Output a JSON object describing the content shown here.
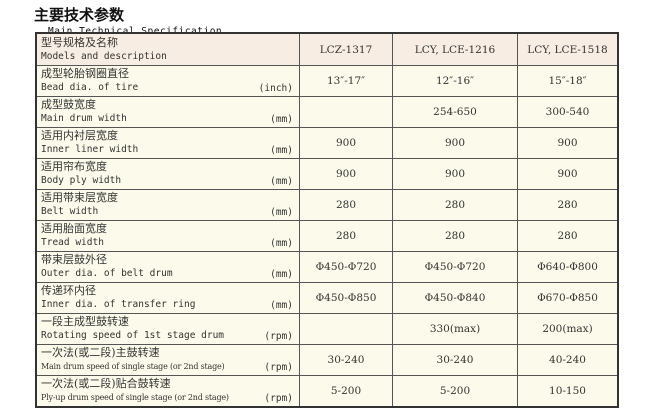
{
  "title": {
    "cn": "主要技术参数",
    "en": "Main Technical Specification"
  },
  "header": {
    "cn": "型号规格及名称",
    "en": "Models and description",
    "models": [
      "LCZ-1317",
      "LCY, LCE-1216",
      "LCY, LCE-1518"
    ]
  },
  "rows": [
    {
      "cn": "成型轮胎钢圈直径",
      "en": "Bead dia. of tire",
      "unit": "(inch)",
      "values": [
        "13″-17″",
        "12″-16″",
        "15″-18″"
      ]
    },
    {
      "cn": "成型鼓宽度",
      "en": "Main drum width",
      "unit": "(mm)",
      "values": [
        "",
        "254-650",
        "300-540"
      ]
    },
    {
      "cn": "适用内衬层宽度",
      "en": "Inner liner width",
      "unit": "(mm)",
      "values": [
        "900",
        "900",
        "900"
      ]
    },
    {
      "cn": "适用帘布宽度",
      "en": "Body ply width",
      "unit": "(mm)",
      "values": [
        "900",
        "900",
        "900"
      ]
    },
    {
      "cn": "适用带束层宽度",
      "en": "Belt width",
      "unit": "(mm)",
      "values": [
        "280",
        "280",
        "280"
      ]
    },
    {
      "cn": "适用胎面宽度",
      "en": "Tread width",
      "unit": "(mm)",
      "values": [
        "280",
        "280",
        "280"
      ]
    },
    {
      "cn": "带束层鼓外径",
      "en": "Outer dia. of belt drum",
      "unit": "(mm)",
      "values": [
        "Φ450-Φ720",
        "Φ450-Φ720",
        "Φ640-Φ800"
      ]
    },
    {
      "cn": "传递环内径",
      "en": "Inner dia. of transfer ring",
      "unit": "(mm)",
      "values": [
        "Φ450-Φ850",
        "Φ450-Φ840",
        "Φ670-Φ850"
      ]
    },
    {
      "cn": "一段主成型鼓转速",
      "en": "Rotating speed of 1st stage drum",
      "unit": "(rpm)",
      "values": [
        "",
        "330(max)",
        "200(max)"
      ]
    },
    {
      "cn": "一次法(或二段)主鼓转速",
      "en": "Main drum speed of single stage (or 2nd stage)",
      "unit": "(rpm)",
      "values": [
        "30-240",
        "30-240",
        "40-240"
      ],
      "small": true
    },
    {
      "cn": "一次法(或二段)贴合鼓转速",
      "en": "Ply-up drum speed of single stage (or 2nd stage)",
      "unit": "(rpm)",
      "values": [
        "5-200",
        "5-200",
        "10-150"
      ],
      "small": true
    }
  ]
}
